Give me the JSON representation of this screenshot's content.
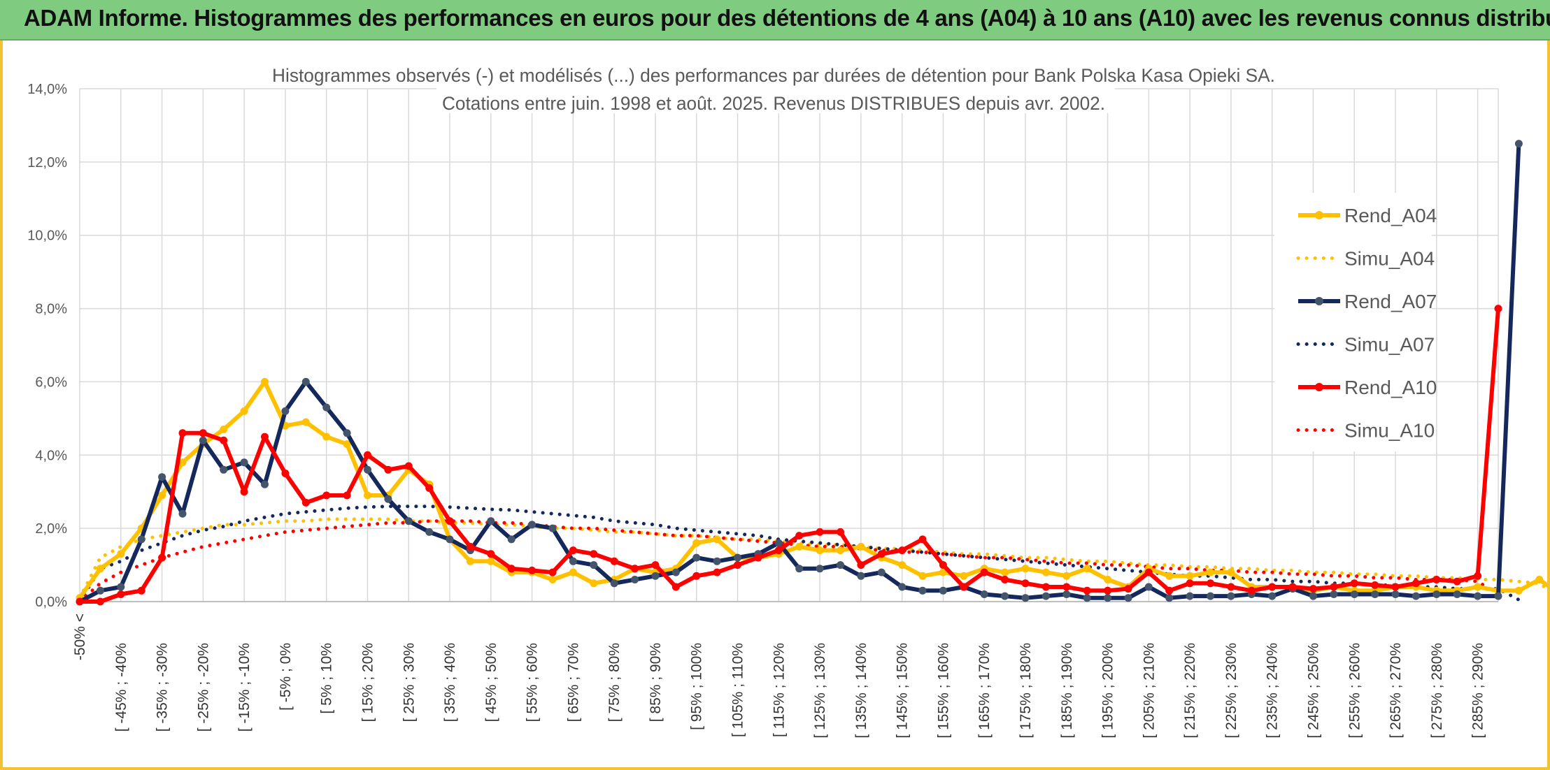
{
  "banner": {
    "title": "ADAM Informe. Histogrammes des performances en euros pour des détentions de 4 ans (A04) à 10 ans (A10) avec les revenus connus distribués"
  },
  "colors": {
    "A04": "#ffc000",
    "A07": "#14285c",
    "A07_marker": "#44546a",
    "A10": "#ff0000",
    "banner": "#7fcb7f",
    "frame": "#f1c232",
    "grid": "#d9d9d9"
  },
  "chart_data": {
    "type": "line",
    "title_lines": [
      "Histogrammes observés (-) et modélisés (...) des performances par durées de détention pour Bank Polska Kasa Opieki SA.",
      "Cotations entre juin. 1998 et août. 2025. Revenus DISTRIBUES depuis avr. 2002."
    ],
    "ylim": [
      0,
      14
    ],
    "yticks": [
      "0,0%",
      "2,0%",
      "4,0%",
      "6,0%",
      "8,0%",
      "10,0%",
      "12,0%",
      "14,0%"
    ],
    "grid": true,
    "legend_position": "right",
    "x_labels": [
      "-50% <",
      "[ -45% ; -40%",
      "[ -35% ; -30%",
      "[ -25% ; -20%",
      "[ -15% ; -10%",
      "[ -5% ; 0%",
      "[ 5% ; 10%",
      "[ 15% ; 20%",
      "[ 25% ; 30%",
      "[ 35% ; 40%",
      "[ 45% ; 50%",
      "[ 55% ; 60%",
      "[ 65% ; 70%",
      "[ 75% ; 80%",
      "[ 85% ; 90%",
      "[ 95% ; 100%",
      "[ 105% ; 110%",
      "[ 115% ; 120%",
      "[ 125% ; 130%",
      "[ 135% ; 140%",
      "[ 145% ; 150%",
      "[ 155% ; 160%",
      "[ 165% ; 170%",
      "[ 175% ; 180%",
      "[ 185% ; 190%",
      "[ 195% ; 200%",
      "[ 205% ; 210%",
      "[ 215% ; 220%",
      "[ 225% ; 230%",
      "[ 235% ; 240%",
      "[ 245% ; 250%",
      "[ 255% ; 260%",
      "[ 265% ; 270%",
      "[ 275% ; 280%",
      "[ 285% ; 290%"
    ],
    "series": [
      {
        "name": "Rend_A04",
        "style": "solid",
        "color": "A04",
        "values": [
          0.1,
          0.9,
          1.3,
          2.0,
          2.9,
          3.8,
          4.3,
          4.7,
          5.2,
          6.0,
          4.8,
          4.9,
          4.5,
          4.3,
          2.9,
          2.9,
          3.6,
          3.2,
          1.7,
          1.1,
          1.1,
          0.8,
          0.8,
          0.6,
          0.8,
          0.5,
          0.6,
          0.9,
          0.8,
          0.9,
          1.6,
          1.7,
          1.2,
          1.2,
          1.3,
          1.5,
          1.4,
          1.4,
          1.5,
          1.2,
          1.0,
          0.7,
          0.8,
          0.7,
          0.9,
          0.8,
          0.9,
          0.8,
          0.7,
          0.9,
          0.6,
          0.4,
          0.9,
          0.7,
          0.7,
          0.8,
          0.8,
          0.4,
          0.4,
          0.4,
          0.3,
          0.4,
          0.3,
          0.3,
          0.4,
          0.4,
          0.3,
          0.3,
          0.4,
          0.3,
          0.3,
          0.6,
          0.2,
          0.6
        ]
      },
      {
        "name": "Simu_A04",
        "style": "dotted",
        "color": "A04",
        "values": [
          0.1,
          1.2,
          1.5,
          1.7,
          1.8,
          1.9,
          2.0,
          2.1,
          2.1,
          2.15,
          2.2,
          2.2,
          2.25,
          2.25,
          2.25,
          2.25,
          2.2,
          2.2,
          2.15,
          2.15,
          2.1,
          2.1,
          2.05,
          2.0,
          2.0,
          1.95,
          1.9,
          1.9,
          1.85,
          1.8,
          1.8,
          1.75,
          1.7,
          1.7,
          1.65,
          1.6,
          1.55,
          1.55,
          1.5,
          1.45,
          1.45,
          1.4,
          1.35,
          1.3,
          1.3,
          1.25,
          1.2,
          1.2,
          1.15,
          1.1,
          1.1,
          1.05,
          1.0,
          1.0,
          0.95,
          0.95,
          0.9,
          0.9,
          0.85,
          0.85,
          0.8,
          0.8,
          0.75,
          0.75,
          0.7,
          0.7,
          0.65,
          0.65,
          0.6,
          0.6,
          0.55,
          0.5,
          0.1,
          0.05
        ]
      },
      {
        "name": "Rend_A07",
        "style": "solid",
        "color": "A07",
        "values": [
          0.0,
          0.3,
          0.4,
          1.7,
          3.4,
          2.4,
          4.4,
          3.6,
          3.8,
          3.2,
          5.2,
          6.0,
          5.3,
          4.6,
          3.6,
          2.8,
          2.2,
          1.9,
          1.7,
          1.4,
          2.2,
          1.7,
          2.1,
          2.0,
          1.1,
          1.0,
          0.5,
          0.6,
          0.7,
          0.8,
          1.2,
          1.1,
          1.2,
          1.3,
          1.6,
          0.9,
          0.9,
          1.0,
          0.7,
          0.8,
          0.4,
          0.3,
          0.3,
          0.4,
          0.2,
          0.15,
          0.1,
          0.15,
          0.2,
          0.1,
          0.1,
          0.1,
          0.4,
          0.1,
          0.15,
          0.15,
          0.15,
          0.2,
          0.15,
          0.35,
          0.15,
          0.2,
          0.2,
          0.2,
          0.2,
          0.15,
          0.2,
          0.2,
          0.15,
          0.15,
          12.5
        ]
      },
      {
        "name": "Simu_A07",
        "style": "dotted",
        "color": "A07",
        "values": [
          0.0,
          0.9,
          1.1,
          1.4,
          1.6,
          1.8,
          1.95,
          2.05,
          2.2,
          2.3,
          2.4,
          2.45,
          2.5,
          2.55,
          2.58,
          2.6,
          2.6,
          2.6,
          2.58,
          2.55,
          2.52,
          2.5,
          2.45,
          2.4,
          2.35,
          2.3,
          2.2,
          2.15,
          2.1,
          2.0,
          1.95,
          1.9,
          1.85,
          1.8,
          1.7,
          1.65,
          1.6,
          1.55,
          1.5,
          1.45,
          1.4,
          1.35,
          1.3,
          1.25,
          1.2,
          1.15,
          1.1,
          1.05,
          1.0,
          0.95,
          0.9,
          0.85,
          0.8,
          0.75,
          0.7,
          0.7,
          0.65,
          0.6,
          0.6,
          0.55,
          0.55,
          0.5,
          0.5,
          0.45,
          0.45,
          0.4,
          0.4,
          0.35,
          0.35,
          0.35,
          0.05
        ]
      },
      {
        "name": "Rend_A10",
        "style": "solid",
        "color": "A10",
        "values": [
          0.0,
          0.0,
          0.2,
          0.3,
          1.2,
          4.6,
          4.6,
          4.4,
          3.0,
          4.5,
          3.5,
          2.7,
          2.9,
          2.9,
          4.0,
          3.6,
          3.7,
          3.1,
          2.2,
          1.5,
          1.3,
          0.9,
          0.85,
          0.8,
          1.4,
          1.3,
          1.1,
          0.9,
          1.0,
          0.4,
          0.7,
          0.8,
          1.0,
          1.2,
          1.4,
          1.8,
          1.9,
          1.9,
          1.0,
          1.3,
          1.4,
          1.7,
          1.0,
          0.4,
          0.8,
          0.6,
          0.5,
          0.4,
          0.4,
          0.3,
          0.3,
          0.35,
          0.8,
          0.3,
          0.5,
          0.5,
          0.4,
          0.3,
          0.4,
          0.4,
          0.35,
          0.4,
          0.5,
          0.45,
          0.4,
          0.5,
          0.6,
          0.55,
          0.7,
          8.0
        ]
      },
      {
        "name": "Simu_A10",
        "style": "dotted",
        "color": "A10",
        "values": [
          0.0,
          0.5,
          0.8,
          1.0,
          1.2,
          1.35,
          1.5,
          1.6,
          1.7,
          1.8,
          1.9,
          1.95,
          2.0,
          2.05,
          2.1,
          2.15,
          2.15,
          2.2,
          2.2,
          2.2,
          2.15,
          2.15,
          2.1,
          2.05,
          2.0,
          2.0,
          1.95,
          1.9,
          1.85,
          1.8,
          1.8,
          1.75,
          1.7,
          1.65,
          1.6,
          1.55,
          1.5,
          1.5,
          1.45,
          1.4,
          1.35,
          1.35,
          1.3,
          1.25,
          1.2,
          1.2,
          1.15,
          1.1,
          1.05,
          1.05,
          1.0,
          1.0,
          0.95,
          0.9,
          0.9,
          0.85,
          0.85,
          0.8,
          0.8,
          0.75,
          0.75,
          0.7,
          0.7,
          0.65,
          0.65,
          0.6,
          0.6,
          0.6,
          0.55,
          0.2
        ]
      }
    ]
  }
}
